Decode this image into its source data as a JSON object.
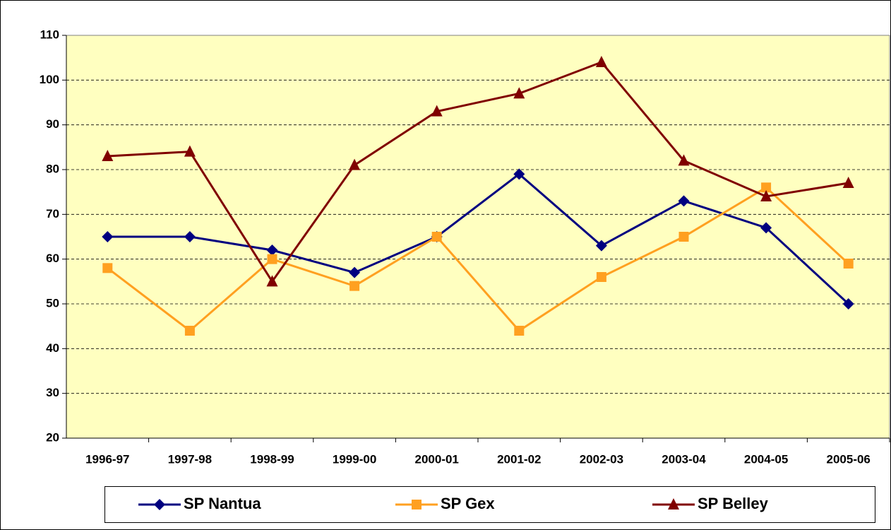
{
  "chart_data": {
    "type": "line",
    "categories": [
      "1996-97",
      "1997-98",
      "1998-99",
      "1999-00",
      "2000-01",
      "2001-02",
      "2002-03",
      "2003-04",
      "2004-05",
      "2005-06"
    ],
    "series": [
      {
        "name": "SP Nantua",
        "color": "#000080",
        "marker": "diamond",
        "values": [
          65,
          65,
          62,
          57,
          65,
          79,
          63,
          73,
          67,
          50
        ]
      },
      {
        "name": "SP Gex",
        "color": "#ffa020",
        "marker": "square",
        "values": [
          58,
          44,
          60,
          54,
          65,
          44,
          56,
          65,
          76,
          59
        ]
      },
      {
        "name": "SP Belley",
        "color": "#800000",
        "marker": "triangle",
        "values": [
          83,
          84,
          55,
          81,
          93,
          97,
          104,
          82,
          74,
          77
        ]
      }
    ],
    "ylim": [
      20,
      110
    ],
    "yticks": [
      20,
      30,
      40,
      50,
      60,
      70,
      80,
      90,
      100,
      110
    ],
    "grid": true,
    "legend": "bottom"
  }
}
